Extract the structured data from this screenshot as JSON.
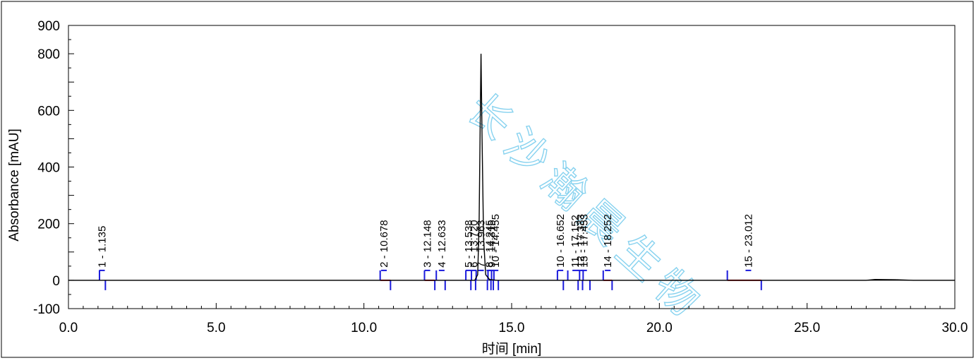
{
  "chart_data": {
    "type": "line",
    "xlabel": "时间 [min]",
    "ylabel": "Absorbance [mAU]",
    "xlim": [
      0.0,
      30.0
    ],
    "ylim": [
      -100,
      900
    ],
    "x_ticks": [
      "0.0",
      "5.0",
      "10.0",
      "15.0",
      "20.0",
      "25.0",
      "30.0"
    ],
    "y_ticks": [
      "900",
      "800",
      "600",
      "400",
      "200",
      "0",
      "-100"
    ],
    "y_tick_values": [
      900,
      800,
      600,
      400,
      200,
      0,
      -100
    ],
    "grid": false,
    "trace": {
      "x": [
        0.0,
        13.75,
        13.85,
        13.9,
        13.93,
        13.963,
        14.0,
        14.05,
        14.12,
        14.25,
        14.5,
        27.0,
        27.3,
        28.0,
        28.6,
        30.0
      ],
      "y": [
        0,
        0,
        20,
        200,
        500,
        800,
        500,
        150,
        20,
        3,
        0,
        0,
        3,
        2,
        0,
        0
      ]
    },
    "peaks": [
      {
        "label": "1 - 1.135",
        "rt": 1.135,
        "start": 1.05,
        "end": 1.25,
        "baseline": false
      },
      {
        "label": "2 - 10.678",
        "rt": 10.678,
        "start": 10.55,
        "end": 10.9,
        "baseline": true
      },
      {
        "label": "3 - 12.148",
        "rt": 12.148,
        "start": 12.05,
        "end": 12.4,
        "baseline": true
      },
      {
        "label": "4 - 12.633",
        "rt": 12.633,
        "start": 12.45,
        "end": 12.75,
        "baseline": false
      },
      {
        "label": "5 - 13.538",
        "rt": 13.538,
        "start": 13.45,
        "end": 13.62,
        "baseline": false
      },
      {
        "label": "6 - 13.720",
        "rt": 13.72,
        "start": 13.64,
        "end": 13.78,
        "baseline": false
      },
      {
        "label": "7 - 13.963",
        "rt": 13.963,
        "start": 13.8,
        "end": 14.18,
        "baseline": false
      },
      {
        "label": "8 - 14.245",
        "rt": 14.245,
        "start": 14.2,
        "end": 14.3,
        "baseline": false
      },
      {
        "label": "9 - 14.315",
        "rt": 14.315,
        "start": 14.32,
        "end": 14.38,
        "baseline": false
      },
      {
        "label": "10 - 14.455",
        "rt": 14.455,
        "start": 14.4,
        "end": 14.55,
        "baseline": false
      },
      {
        "label": "10 - 16.652",
        "rt": 16.652,
        "start": 16.55,
        "end": 16.75,
        "baseline": false
      },
      {
        "label": "11 - 17.152",
        "rt": 17.152,
        "start": 16.9,
        "end": 17.25,
        "baseline": false
      },
      {
        "label": "12 - 17.333",
        "rt": 17.333,
        "start": 17.3,
        "end": 17.4,
        "baseline": false
      },
      {
        "label": "13 - 17.453",
        "rt": 17.453,
        "start": 17.42,
        "end": 17.65,
        "baseline": false
      },
      {
        "label": "14 - 18.252",
        "rt": 18.252,
        "start": 18.1,
        "end": 18.4,
        "baseline": true
      },
      {
        "label": "15 - 23.012",
        "rt": 23.012,
        "start": 22.3,
        "end": 23.45,
        "baseline": true
      }
    ],
    "colors": {
      "trace": "#000000",
      "marker": "#1a1adc",
      "baseline": "#e02020"
    }
  },
  "watermark": {
    "text": "长沙瀚晨生物",
    "color": "#5fc3ea"
  }
}
